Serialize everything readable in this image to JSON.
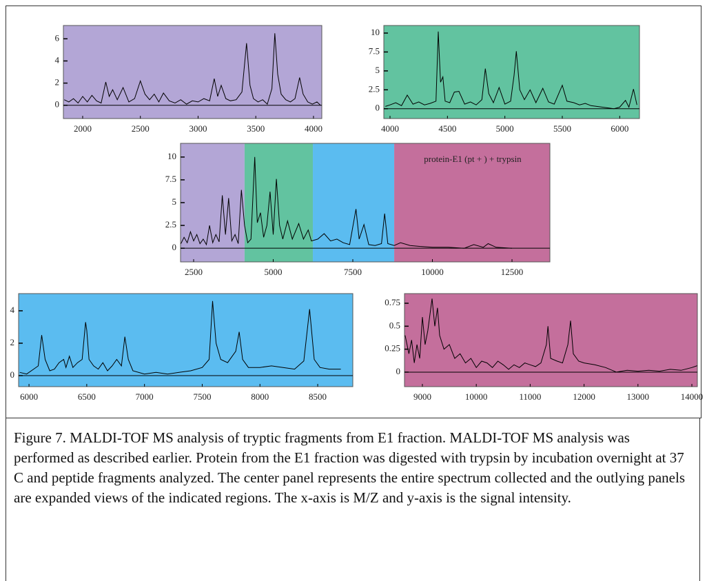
{
  "chart_data": [
    {
      "type": "line",
      "color": "#000000",
      "background": "#b3a6d6",
      "xlim": [
        1833,
        4072
      ],
      "ylim": [
        -1.2,
        7.2
      ],
      "xticks": [
        2000,
        2500,
        3000,
        3500,
        4000
      ],
      "yticks": [
        0,
        2,
        4,
        6
      ],
      "x": [
        1840,
        1880,
        1920,
        1960,
        2000,
        2040,
        2080,
        2120,
        2160,
        2200,
        2230,
        2260,
        2300,
        2350,
        2400,
        2450,
        2500,
        2540,
        2580,
        2620,
        2660,
        2700,
        2750,
        2800,
        2850,
        2900,
        2950,
        3000,
        3050,
        3100,
        3140,
        3170,
        3200,
        3240,
        3280,
        3330,
        3380,
        3420,
        3450,
        3480,
        3520,
        3560,
        3600,
        3640,
        3665,
        3690,
        3720,
        3760,
        3800,
        3840,
        3880,
        3910,
        3950,
        3990,
        4030,
        4060
      ],
      "values": [
        0.5,
        0.3,
        0.6,
        0.2,
        0.8,
        0.3,
        0.9,
        0.4,
        0.2,
        2.1,
        0.8,
        1.4,
        0.5,
        1.6,
        0.3,
        0.6,
        2.2,
        1.0,
        0.5,
        1.0,
        0.3,
        1.1,
        0.4,
        0.2,
        0.5,
        0.1,
        0.4,
        0.3,
        0.6,
        0.4,
        2.4,
        0.8,
        1.8,
        0.6,
        0.4,
        0.5,
        1.2,
        5.6,
        1.8,
        0.6,
        0.3,
        0.5,
        0.1,
        1.5,
        6.5,
        2.8,
        1.0,
        0.5,
        0.3,
        0.6,
        2.5,
        1.0,
        0.3,
        0.1,
        0.3,
        0.0
      ]
    },
    {
      "type": "line",
      "color": "#000000",
      "background": "#62c3a0",
      "xlim": [
        3946,
        6172
      ],
      "ylim": [
        -1.3,
        11.0
      ],
      "xticks": [
        4000,
        4500,
        5000,
        5500,
        6000
      ],
      "yticks": [
        0,
        2.5,
        5,
        7.5,
        10
      ],
      "x": [
        3960,
        4000,
        4050,
        4100,
        4150,
        4200,
        4250,
        4300,
        4350,
        4400,
        4420,
        4440,
        4460,
        4480,
        4520,
        4560,
        4600,
        4650,
        4700,
        4750,
        4800,
        4830,
        4860,
        4900,
        4950,
        5000,
        5050,
        5080,
        5100,
        5130,
        5170,
        5220,
        5270,
        5330,
        5380,
        5430,
        5500,
        5540,
        5600,
        5650,
        5700,
        5750,
        5800,
        5850,
        5900,
        5950,
        6000,
        6050,
        6080,
        6120,
        6150
      ],
      "values": [
        0.3,
        0.5,
        0.8,
        0.4,
        1.8,
        0.6,
        0.9,
        0.5,
        0.7,
        1.0,
        10.2,
        3.5,
        4.2,
        1.0,
        0.8,
        2.2,
        2.3,
        0.6,
        0.9,
        0.5,
        1.2,
        5.3,
        2.0,
        0.8,
        2.8,
        0.6,
        1.0,
        4.4,
        7.6,
        2.5,
        1.2,
        2.5,
        0.8,
        2.7,
        0.9,
        0.6,
        3.1,
        1.0,
        0.8,
        0.5,
        0.7,
        0.4,
        0.3,
        0.2,
        0.1,
        0.0,
        0.2,
        1.1,
        0.2,
        2.6,
        0.5
      ]
    },
    {
      "type": "line",
      "color": "#000000",
      "annotation": "protein-E1 (pt + ) + trypsin",
      "regions": [
        {
          "from": 2089,
          "to": 4100,
          "color": "#b3a6d6"
        },
        {
          "from": 4100,
          "to": 6245,
          "color": "#62c3a0"
        },
        {
          "from": 6245,
          "to": 8800,
          "color": "#5bbcf0"
        },
        {
          "from": 8800,
          "to": 13690,
          "color": "#c46f9c"
        }
      ],
      "xlim": [
        2089,
        13690
      ],
      "ylim": [
        -1.5,
        11.5
      ],
      "xticks": [
        2500,
        5000,
        7500,
        10000,
        12500
      ],
      "yticks": [
        0,
        2.5,
        5,
        7.5,
        10
      ],
      "x": [
        2100,
        2200,
        2300,
        2400,
        2500,
        2600,
        2700,
        2800,
        2900,
        3000,
        3100,
        3200,
        3300,
        3400,
        3500,
        3600,
        3700,
        3800,
        3900,
        4000,
        4100,
        4200,
        4300,
        4420,
        4500,
        4600,
        4700,
        4800,
        4900,
        5000,
        5100,
        5200,
        5300,
        5450,
        5600,
        5800,
        5950,
        6100,
        6200,
        6400,
        6600,
        6800,
        7000,
        7200,
        7400,
        7600,
        7700,
        7850,
        8000,
        8200,
        8400,
        8500,
        8600,
        8800,
        9000,
        9300,
        9600,
        10000,
        10500,
        11000,
        11300,
        11600,
        11750,
        12000,
        12500
      ],
      "values": [
        0.5,
        1.2,
        0.6,
        1.8,
        0.8,
        1.5,
        0.5,
        1.0,
        0.4,
        2.5,
        0.6,
        1.5,
        0.7,
        5.8,
        1.5,
        5.5,
        0.8,
        1.5,
        0.5,
        6.4,
        2.5,
        0.6,
        1.0,
        10.0,
        2.8,
        3.9,
        1.2,
        2.5,
        6.2,
        1.5,
        7.6,
        2.5,
        1.0,
        3.0,
        1.0,
        2.7,
        1.0,
        2.0,
        0.8,
        1.0,
        1.6,
        0.8,
        1.0,
        0.6,
        0.4,
        4.3,
        1.0,
        2.6,
        0.4,
        0.3,
        0.5,
        3.8,
        0.5,
        0.3,
        0.6,
        0.3,
        0.2,
        0.1,
        0.1,
        0.0,
        0.4,
        0.1,
        0.5,
        0.1,
        0.0
      ]
    },
    {
      "type": "line",
      "color": "#000000",
      "background": "#5bbcf0",
      "xlim": [
        5910,
        8804
      ],
      "ylim": [
        -0.68,
        5.06
      ],
      "xticks": [
        6000,
        6500,
        7000,
        7500,
        8000,
        8500
      ],
      "yticks": [
        0,
        2,
        4
      ],
      "x": [
        5920,
        5980,
        6040,
        6080,
        6110,
        6140,
        6180,
        6220,
        6260,
        6300,
        6320,
        6350,
        6380,
        6420,
        6460,
        6490,
        6500,
        6520,
        6560,
        6600,
        6640,
        6680,
        6720,
        6760,
        6800,
        6830,
        6860,
        6900,
        7000,
        7100,
        7200,
        7300,
        7400,
        7500,
        7560,
        7590,
        7620,
        7660,
        7720,
        7790,
        7820,
        7850,
        7900,
        8000,
        8100,
        8200,
        8300,
        8380,
        8430,
        8470,
        8520,
        8600,
        8700
      ],
      "values": [
        0.2,
        0.1,
        0.4,
        0.6,
        2.5,
        1.0,
        0.3,
        0.4,
        0.8,
        1.0,
        0.5,
        1.2,
        0.5,
        0.8,
        1.0,
        3.3,
        2.8,
        1.0,
        0.6,
        0.4,
        0.8,
        0.3,
        0.6,
        1.0,
        0.6,
        2.4,
        1.0,
        0.3,
        0.1,
        0.2,
        0.1,
        0.2,
        0.3,
        0.5,
        1.0,
        4.6,
        2.0,
        1.0,
        0.8,
        1.5,
        2.7,
        1.0,
        0.5,
        0.5,
        0.6,
        0.5,
        0.4,
        0.9,
        4.1,
        1.0,
        0.5,
        0.4,
        0.4
      ]
    },
    {
      "type": "line",
      "color": "#000000",
      "background": "#c46f9c",
      "xlim": [
        8668,
        14102
      ],
      "ylim": [
        -0.158,
        0.855
      ],
      "xticks": [
        9000,
        10000,
        11000,
        12000,
        13000,
        14000
      ],
      "yticks": [
        0,
        0.25,
        0.5,
        0.75
      ],
      "x": [
        8680,
        8750,
        8800,
        8850,
        8900,
        8950,
        9000,
        9050,
        9100,
        9180,
        9230,
        9280,
        9320,
        9400,
        9500,
        9600,
        9700,
        9800,
        9900,
        10000,
        10100,
        10200,
        10300,
        10400,
        10500,
        10600,
        10700,
        10800,
        10900,
        11000,
        11100,
        11200,
        11300,
        11330,
        11380,
        11500,
        11600,
        11700,
        11750,
        11800,
        11900,
        12000,
        12200,
        12400,
        12600,
        12800,
        13000,
        13200,
        13400,
        13600,
        13800,
        14000,
        14100
      ],
      "values": [
        0.4,
        0.2,
        0.35,
        0.1,
        0.3,
        0.15,
        0.6,
        0.3,
        0.45,
        0.8,
        0.5,
        0.7,
        0.4,
        0.25,
        0.3,
        0.15,
        0.2,
        0.1,
        0.15,
        0.05,
        0.12,
        0.1,
        0.05,
        0.12,
        0.08,
        0.03,
        0.08,
        0.05,
        0.1,
        0.08,
        0.06,
        0.1,
        0.3,
        0.5,
        0.15,
        0.12,
        0.1,
        0.3,
        0.56,
        0.2,
        0.12,
        0.1,
        0.08,
        0.05,
        0.0,
        0.02,
        0.01,
        0.02,
        0.01,
        0.03,
        0.02,
        0.05,
        0.07
      ]
    }
  ],
  "caption": "Figure 7.  MALDI-TOF MS analysis of tryptic fragments from E1 fraction.  MALDI-TOF MS analysis was performed as described earlier.  Protein from the E1 fraction was digested with trypsin by incubation overnight at 37 C and peptide fragments analyzed.  The center panel represents the entire spectrum collected and the outlying panels are expanded views of the indicated regions.  The x-axis is M/Z and y-axis is the signal intensity."
}
